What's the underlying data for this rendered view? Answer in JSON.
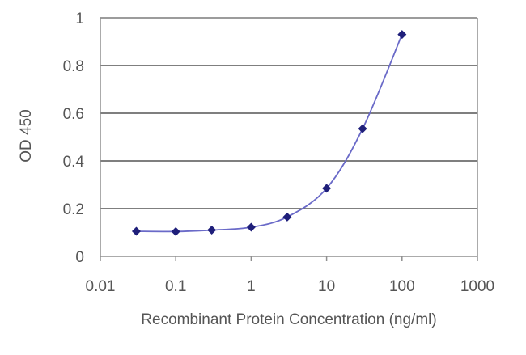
{
  "chart_data": {
    "type": "line",
    "title": "",
    "xlabel": "Recombinant Protein Concentration (ng/ml)",
    "ylabel": "OD 450",
    "x_scale": "log",
    "xlim": [
      0.01,
      1000
    ],
    "ylim": [
      0,
      1
    ],
    "x_ticks": [
      "0.01",
      "0.1",
      "1",
      "10",
      "100",
      "1000"
    ],
    "y_ticks": [
      "0",
      "0.2",
      "0.4",
      "0.6",
      "0.8",
      "1"
    ],
    "grid": "horizontal",
    "legend": "none",
    "series": [
      {
        "x": [
          0.03,
          0.1,
          0.3,
          1,
          3,
          10,
          30,
          100
        ],
        "y": [
          0.105,
          0.104,
          0.11,
          0.122,
          0.165,
          0.285,
          0.535,
          0.93
        ],
        "color": "#2b2b8c",
        "marker": "diamond"
      }
    ],
    "colors": {
      "grid": "#555555",
      "axis": "#8f8f8f",
      "curve": "#6a6ac8",
      "marker": "#1f1f7a"
    }
  }
}
